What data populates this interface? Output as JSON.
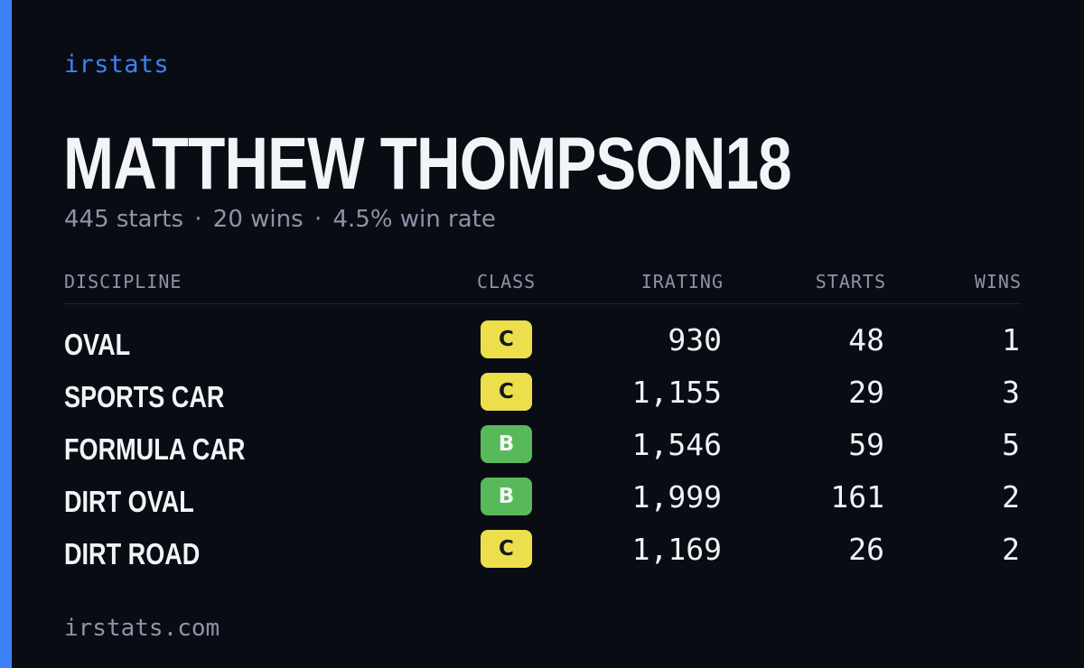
{
  "brand": "irstats",
  "driver": {
    "name": "MATTHEW THOMPSON18",
    "starts": "445 starts",
    "wins": "20 wins",
    "win_rate": "4.5% win rate",
    "separator": "·"
  },
  "table": {
    "headers": {
      "discipline": "DISCIPLINE",
      "class": "CLASS",
      "irating": "IRATING",
      "starts": "STARTS",
      "wins": "WINS"
    },
    "rows": [
      {
        "discipline": "OVAL",
        "class": "C",
        "irating": "930",
        "starts": "48",
        "wins": "1"
      },
      {
        "discipline": "SPORTS CAR",
        "class": "C",
        "irating": "1,155",
        "starts": "29",
        "wins": "3"
      },
      {
        "discipline": "FORMULA CAR",
        "class": "B",
        "irating": "1,546",
        "starts": "59",
        "wins": "5"
      },
      {
        "discipline": "DIRT OVAL",
        "class": "B",
        "irating": "1,999",
        "starts": "161",
        "wins": "2"
      },
      {
        "discipline": "DIRT ROAD",
        "class": "C",
        "irating": "1,169",
        "starts": "26",
        "wins": "2"
      }
    ]
  },
  "footer": "irstats.com",
  "colors": {
    "background": "#0a0c14",
    "accent": "#3b82f6",
    "class_c": "#ecdf4b",
    "class_b": "#58b95b",
    "muted_text": "#8c94a6"
  }
}
